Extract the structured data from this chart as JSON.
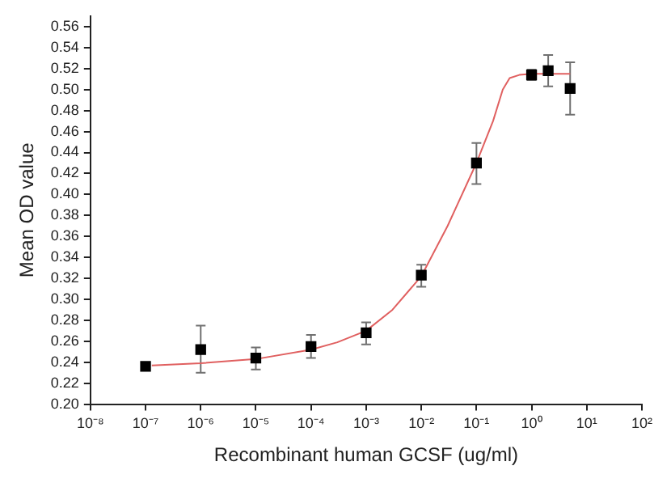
{
  "chart_data": {
    "type": "scatter",
    "xlabel": "Recombinant human GCSF (ug/ml)",
    "ylabel": "Mean OD value",
    "log": "x",
    "grid": false,
    "legend": false,
    "xlim": [
      1e-08,
      100
    ],
    "xticks": [
      {
        "value": 1e-08,
        "label": "10⁻⁸"
      },
      {
        "value": 1e-07,
        "label": "10⁻⁷"
      },
      {
        "value": 1e-06,
        "label": "10⁻⁶"
      },
      {
        "value": 1e-05,
        "label": "10⁻⁵"
      },
      {
        "value": 0.0001,
        "label": "10⁻⁴"
      },
      {
        "value": 0.001,
        "label": "10⁻³"
      },
      {
        "value": 0.01,
        "label": "10⁻²"
      },
      {
        "value": 0.1,
        "label": "10⁻¹"
      },
      {
        "value": 1,
        "label": "10⁰"
      },
      {
        "value": 10,
        "label": "10¹"
      },
      {
        "value": 100,
        "label": "10²"
      }
    ],
    "ylim": [
      0.2,
      0.57
    ],
    "yticks": [
      {
        "value": 0.2,
        "label": "0.20"
      },
      {
        "value": 0.22,
        "label": "0.22"
      },
      {
        "value": 0.24,
        "label": "0.24"
      },
      {
        "value": 0.26,
        "label": "0.26"
      },
      {
        "value": 0.28,
        "label": "0.28"
      },
      {
        "value": 0.3,
        "label": "0.30"
      },
      {
        "value": 0.32,
        "label": "0.32"
      },
      {
        "value": 0.34,
        "label": "0.34"
      },
      {
        "value": 0.36,
        "label": "0.36"
      },
      {
        "value": 0.38,
        "label": "0.38"
      },
      {
        "value": 0.4,
        "label": "0.40"
      },
      {
        "value": 0.42,
        "label": "0.42"
      },
      {
        "value": 0.44,
        "label": "0.44"
      },
      {
        "value": 0.46,
        "label": "0.46"
      },
      {
        "value": 0.48,
        "label": "0.48"
      },
      {
        "value": 0.5,
        "label": "0.50"
      },
      {
        "value": 0.52,
        "label": "0.52"
      },
      {
        "value": 0.54,
        "label": "0.54"
      },
      {
        "value": 0.56,
        "label": "0.56"
      }
    ],
    "series": [
      {
        "type": "line",
        "color": "#e06060",
        "marker": "none",
        "line_style": "solid",
        "x": [
          1.3e-07,
          1e-06,
          1e-05,
          0.0001,
          0.0003,
          0.001,
          0.003,
          0.01,
          0.03,
          0.1,
          0.2,
          0.3,
          0.4,
          0.6,
          1,
          2,
          5
        ],
        "values": [
          0.237,
          0.239,
          0.243,
          0.252,
          0.259,
          0.27,
          0.29,
          0.322,
          0.37,
          0.43,
          0.47,
          0.5,
          0.511,
          0.514,
          0.515,
          0.515,
          0.515
        ]
      },
      {
        "type": "scatter",
        "color": "#000000",
        "marker": "square",
        "x": [
          1e-07,
          1e-06,
          1e-05,
          0.0001,
          0.001,
          0.01,
          0.1,
          1,
          2,
          5
        ],
        "values": [
          0.236,
          0.252,
          0.244,
          0.255,
          0.268,
          0.323,
          0.43,
          0.514,
          0.518,
          0.501
        ],
        "errors": [
          null,
          [
            0.23,
            0.275
          ],
          [
            0.233,
            0.254
          ],
          [
            0.244,
            0.266
          ],
          [
            0.257,
            0.278
          ],
          [
            0.312,
            0.333
          ],
          [
            0.41,
            0.449
          ],
          [
            0.509,
            0.519
          ],
          [
            0.503,
            0.533
          ],
          [
            0.476,
            0.526
          ]
        ]
      }
    ]
  }
}
